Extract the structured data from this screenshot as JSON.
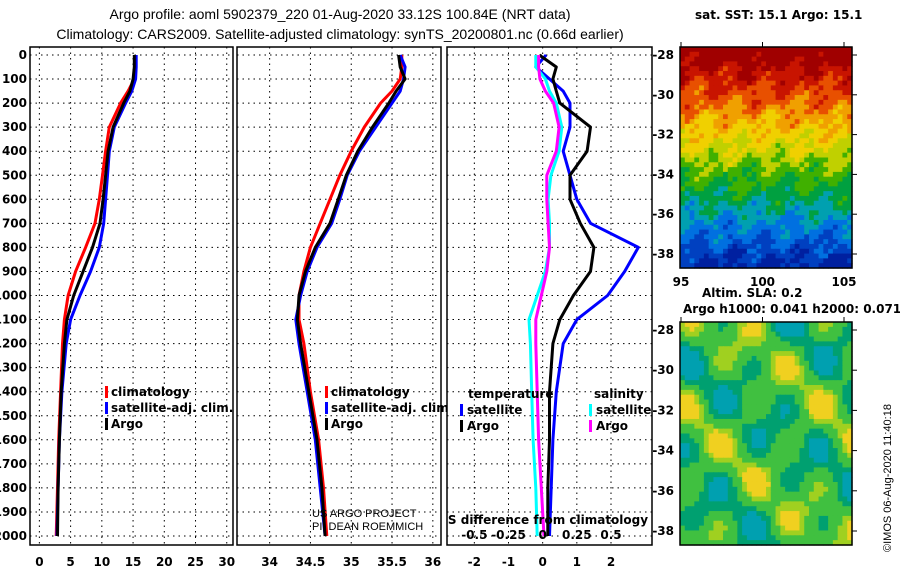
{
  "header": {
    "title1": "Argo profile: aoml 5902379_220 01-Aug-2020 33.12S 100.84E (NRT data)",
    "title2": "Climatology: CARS2009. Satellite-adjusted climatology: synTS_20200801.nc (0.66d earlier)"
  },
  "colors": {
    "climatology": "#ff0000",
    "satellite": "#0000ff",
    "argo": "#000000",
    "sat_s": "#00ffff",
    "argo_s": "#ff00ff"
  },
  "depth_ticks": [
    0,
    100,
    200,
    300,
    400,
    500,
    600,
    700,
    800,
    900,
    1000,
    1100,
    1200,
    1300,
    1400,
    1500,
    1600,
    1700,
    1800,
    1900,
    2000
  ],
  "credit": {
    "line1": "US ARGO PROJECT",
    "line2": "PI: DEAN ROEMMICH"
  },
  "chart_data": [
    {
      "type": "line",
      "name": "temperature",
      "xlim": [
        -1.5,
        31
      ],
      "ylim": [
        2050,
        0
      ],
      "xticks": [
        0,
        5,
        10,
        15,
        20,
        25,
        30
      ],
      "legend": [
        "climatology",
        "satellite-adj. clim.",
        "Argo"
      ],
      "depth": [
        0,
        50,
        100,
        150,
        200,
        300,
        400,
        500,
        600,
        700,
        800,
        900,
        1000,
        1100,
        1200,
        1400,
        1600,
        1800,
        2000
      ],
      "series": [
        {
          "name": "climatology",
          "color": "#ff0000",
          "values": [
            15.4,
            15.4,
            15.2,
            14.2,
            13.0,
            11.2,
            10.6,
            10.1,
            9.6,
            8.9,
            7.4,
            5.8,
            4.6,
            4.0,
            3.7,
            3.4,
            3.1,
            2.9,
            2.7
          ]
        },
        {
          "name": "satellite-adj. clim.",
          "color": "#0000ff",
          "values": [
            15.5,
            15.5,
            15.4,
            14.8,
            13.8,
            12.0,
            11.2,
            10.9,
            10.6,
            10.3,
            9.6,
            8.2,
            6.5,
            5.0,
            4.3,
            3.6,
            3.2,
            3.0,
            2.8
          ]
        },
        {
          "name": "Argo",
          "color": "#000000",
          "values": [
            15.2,
            15.2,
            15.0,
            14.5,
            13.5,
            11.8,
            11.0,
            10.6,
            10.2,
            9.7,
            8.5,
            7.0,
            5.5,
            4.4,
            4.0,
            3.5,
            3.2,
            3.0,
            2.9
          ]
        }
      ]
    },
    {
      "type": "line",
      "name": "salinity",
      "xlim": [
        33.6,
        36.1
      ],
      "ylim": [
        2050,
        0
      ],
      "xticks": [
        34,
        34.5,
        35,
        35.5,
        36
      ],
      "legend": [
        "climatology",
        "satellite-adj. clim.",
        "Argo"
      ],
      "depth": [
        0,
        50,
        100,
        150,
        200,
        300,
        400,
        500,
        600,
        700,
        800,
        900,
        1000,
        1100,
        1200,
        1400,
        1600,
        1800,
        2000
      ],
      "series": [
        {
          "name": "climatology",
          "color": "#ff0000",
          "values": [
            35.62,
            35.62,
            35.6,
            35.5,
            35.36,
            35.16,
            35.0,
            34.86,
            34.74,
            34.62,
            34.5,
            34.42,
            34.36,
            34.36,
            34.42,
            34.5,
            34.6,
            34.66,
            34.7
          ]
        },
        {
          "name": "satellite-adj. clim.",
          "color": "#0000ff",
          "values": [
            35.6,
            35.66,
            35.64,
            35.6,
            35.5,
            35.3,
            35.1,
            34.95,
            34.86,
            34.76,
            34.58,
            34.46,
            34.38,
            34.32,
            34.36,
            34.46,
            34.56,
            34.62,
            34.68
          ]
        },
        {
          "name": "Argo",
          "color": "#000000",
          "values": [
            35.58,
            35.6,
            35.66,
            35.55,
            35.46,
            35.26,
            35.08,
            34.94,
            34.84,
            34.74,
            34.56,
            34.44,
            34.36,
            34.34,
            34.38,
            34.48,
            34.58,
            34.64,
            34.68
          ]
        }
      ]
    },
    {
      "type": "line",
      "name": "difference from climatology",
      "xlabel": "S difference from climatology",
      "xlim": [
        -2.8,
        3.2
      ],
      "ylim": [
        2050,
        0
      ],
      "xticks": [
        -2,
        -1,
        0,
        1,
        2
      ],
      "s_ticks": [
        "-0.5",
        "-0.25",
        "0",
        "0.25",
        "0.5"
      ],
      "legend_t": {
        "title": "temperature",
        "items": [
          "satellite",
          "Argo"
        ]
      },
      "legend_s": {
        "title": "salinity",
        "items": [
          "satellite",
          "Argo"
        ]
      },
      "depth": [
        0,
        50,
        100,
        150,
        200,
        300,
        400,
        500,
        600,
        700,
        800,
        900,
        1000,
        1100,
        1200,
        1400,
        1600,
        1800,
        2000
      ],
      "series": [
        {
          "name": "T satellite",
          "color": "#0000ff",
          "values": [
            0.1,
            -0.2,
            0.2,
            0.6,
            0.8,
            0.8,
            0.6,
            0.8,
            1.0,
            1.4,
            2.8,
            2.4,
            1.9,
            1.0,
            0.6,
            0.4,
            0.3,
            0.25,
            0.2
          ]
        },
        {
          "name": "T Argo",
          "color": "#000000",
          "values": [
            -0.1,
            0.4,
            0.3,
            0.4,
            0.5,
            1.4,
            1.3,
            0.8,
            0.8,
            1.1,
            1.5,
            1.4,
            0.9,
            0.5,
            0.3,
            0.2,
            0.2,
            0.15,
            0.15
          ]
        },
        {
          "name": "S satellite",
          "color": "#00ffff",
          "values": [
            -0.05,
            -0.05,
            0.02,
            0.05,
            0.1,
            0.14,
            0.12,
            0.06,
            0.04,
            0.05,
            0.05,
            0.02,
            -0.04,
            -0.1,
            -0.09,
            -0.08,
            -0.07,
            -0.05,
            -0.04
          ]
        },
        {
          "name": "S Argo",
          "color": "#ff00ff",
          "values": [
            -0.03,
            -0.03,
            -0.02,
            0.02,
            0.08,
            0.12,
            0.1,
            0.03,
            0.03,
            0.04,
            0.05,
            0.03,
            -0.01,
            -0.05,
            -0.05,
            -0.04,
            -0.03,
            -0.01,
            0.01
          ]
        }
      ]
    }
  ],
  "maps": {
    "sst_title": "sat. SST: 15.1 Argo: 15.1",
    "lat_ticks": [
      "-28",
      "-30",
      "-32",
      "-34",
      "-36",
      "-38"
    ],
    "lon_ticks": [
      "95",
      "100",
      "105"
    ],
    "sla_title": "Altim. SLA: 0.2",
    "h_title": "Argo h1000: 0.041 h2000: 0.071",
    "copyright": "©IMOS 06-Aug-2020 11:40:18"
  }
}
